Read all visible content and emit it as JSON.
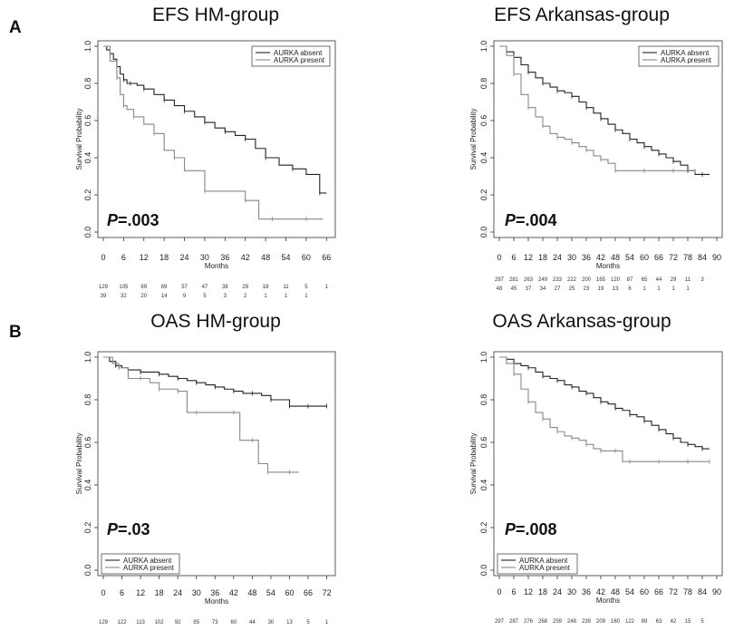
{
  "panel_labels": [
    "A",
    "B"
  ],
  "chart_data": [
    {
      "type": "line",
      "title": "EFS HM-group",
      "xlabel": "Months",
      "ylabel": "Survival Probability",
      "xticks": [
        0,
        6,
        12,
        18,
        24,
        30,
        36,
        42,
        48,
        54,
        60,
        66
      ],
      "yticks": [
        "0.0",
        "0.2",
        "0.4",
        "0.6",
        "0.8",
        "1.0"
      ],
      "xlim": [
        0,
        67
      ],
      "ylim": [
        0,
        1
      ],
      "pvalue_prefix": "P",
      "pvalue_text": "=.003",
      "legend_position": "top-right",
      "series": [
        {
          "name": "AURKA absent",
          "color": "#222222",
          "x": [
            0,
            1,
            2,
            3,
            4,
            5,
            6,
            7,
            8,
            10,
            12,
            15,
            18,
            21,
            24,
            27,
            30,
            33,
            36,
            39,
            42,
            45,
            48,
            52,
            56,
            60,
            64,
            66
          ],
          "y": [
            1.0,
            0.98,
            0.96,
            0.93,
            0.89,
            0.85,
            0.82,
            0.8,
            0.8,
            0.79,
            0.77,
            0.74,
            0.71,
            0.68,
            0.65,
            0.62,
            0.59,
            0.56,
            0.54,
            0.52,
            0.5,
            0.45,
            0.4,
            0.36,
            0.34,
            0.31,
            0.21,
            0.21
          ]
        },
        {
          "name": "AURKA present",
          "color": "#888888",
          "x": [
            0,
            2,
            4,
            5,
            6,
            7,
            9,
            12,
            15,
            18,
            21,
            24,
            30,
            36,
            42,
            46,
            50,
            56,
            60,
            65
          ],
          "y": [
            1.0,
            0.92,
            0.83,
            0.74,
            0.68,
            0.66,
            0.62,
            0.58,
            0.53,
            0.44,
            0.4,
            0.33,
            0.22,
            0.22,
            0.17,
            0.07,
            0.07,
            0.07,
            0.07,
            0.07
          ]
        }
      ],
      "risk_table": [
        [
          "129",
          "105",
          "89",
          "69",
          "57",
          "47",
          "38",
          "29",
          "18",
          "11",
          "5",
          "1"
        ],
        [
          "39",
          "32",
          "20",
          "14",
          "9",
          "5",
          "3",
          "2",
          "1",
          "1",
          "1",
          ""
        ]
      ]
    },
    {
      "type": "line",
      "title": "EFS Arkansas-group",
      "xlabel": "Months",
      "ylabel": "Survival Probability",
      "xticks": [
        0,
        6,
        12,
        18,
        24,
        30,
        36,
        42,
        48,
        54,
        60,
        66,
        72,
        78,
        84,
        90
      ],
      "yticks": [
        "0.0",
        "0.2",
        "0.4",
        "0.6",
        "0.8",
        "1.0"
      ],
      "xlim": [
        0,
        90
      ],
      "ylim": [
        0,
        1
      ],
      "pvalue_prefix": "P",
      "pvalue_text": "=.004",
      "legend_position": "top-right",
      "series": [
        {
          "name": "AURKA absent",
          "color": "#222222",
          "x": [
            0,
            3,
            6,
            9,
            12,
            15,
            18,
            21,
            24,
            27,
            30,
            33,
            36,
            39,
            42,
            45,
            48,
            51,
            54,
            57,
            60,
            63,
            66,
            69,
            72,
            75,
            78,
            81,
            84,
            87
          ],
          "y": [
            1.0,
            0.97,
            0.94,
            0.9,
            0.86,
            0.83,
            0.8,
            0.78,
            0.76,
            0.75,
            0.73,
            0.7,
            0.67,
            0.64,
            0.61,
            0.58,
            0.55,
            0.53,
            0.5,
            0.48,
            0.46,
            0.44,
            0.42,
            0.4,
            0.38,
            0.36,
            0.33,
            0.31,
            0.31,
            0.31
          ]
        },
        {
          "name": "AURKA present",
          "color": "#888888",
          "x": [
            0,
            3,
            6,
            9,
            12,
            15,
            18,
            21,
            24,
            27,
            30,
            33,
            36,
            39,
            42,
            45,
            48,
            54,
            60,
            66,
            72,
            78,
            81
          ],
          "y": [
            1.0,
            0.95,
            0.85,
            0.74,
            0.67,
            0.62,
            0.57,
            0.53,
            0.51,
            0.5,
            0.48,
            0.46,
            0.44,
            0.41,
            0.39,
            0.37,
            0.33,
            0.33,
            0.33,
            0.33,
            0.33,
            0.33,
            0.33
          ]
        }
      ],
      "risk_table": [
        [
          "297",
          "281",
          "263",
          "249",
          "233",
          "222",
          "200",
          "165",
          "120",
          "87",
          "65",
          "44",
          "29",
          "11",
          "3",
          ""
        ],
        [
          "48",
          "45",
          "37",
          "34",
          "27",
          "25",
          "23",
          "19",
          "13",
          "6",
          "1",
          "1",
          "1",
          "1",
          "",
          ""
        ]
      ]
    },
    {
      "type": "line",
      "title": "OAS HM-group",
      "xlabel": "Months",
      "ylabel": "Survival Probability",
      "xticks": [
        0,
        6,
        12,
        18,
        24,
        30,
        36,
        42,
        48,
        54,
        60,
        66,
        72
      ],
      "yticks": [
        "0.0",
        "0.2",
        "0.4",
        "0.6",
        "0.8",
        "1.0"
      ],
      "xlim": [
        0,
        73
      ],
      "ylim": [
        0,
        1
      ],
      "pvalue_prefix": "P",
      "pvalue_text": "=.03",
      "legend_position": "bottom-left",
      "series": [
        {
          "name": "AURKA absent",
          "color": "#222222",
          "x": [
            0,
            2,
            4,
            6,
            8,
            10,
            12,
            15,
            18,
            21,
            24,
            27,
            30,
            33,
            36,
            39,
            42,
            45,
            48,
            51,
            54,
            57,
            60,
            63,
            66,
            69,
            72
          ],
          "y": [
            1.0,
            0.98,
            0.96,
            0.95,
            0.94,
            0.94,
            0.93,
            0.93,
            0.92,
            0.91,
            0.9,
            0.89,
            0.88,
            0.87,
            0.86,
            0.85,
            0.84,
            0.83,
            0.83,
            0.82,
            0.8,
            0.8,
            0.77,
            0.77,
            0.77,
            0.77,
            0.77
          ]
        },
        {
          "name": "AURKA present",
          "color": "#888888",
          "x": [
            0,
            3,
            5,
            8,
            12,
            15,
            18,
            21,
            24,
            27,
            30,
            36,
            42,
            44,
            48,
            50,
            53,
            56,
            60,
            63
          ],
          "y": [
            1.0,
            0.97,
            0.95,
            0.9,
            0.9,
            0.88,
            0.85,
            0.85,
            0.84,
            0.74,
            0.74,
            0.74,
            0.74,
            0.61,
            0.61,
            0.5,
            0.46,
            0.46,
            0.46,
            0.46
          ]
        }
      ],
      "risk_table": [
        [
          "129",
          "122",
          "113",
          "102",
          "92",
          "85",
          "73",
          "60",
          "44",
          "30",
          "13",
          "5",
          "1"
        ]
      ]
    },
    {
      "type": "line",
      "title": "OAS Arkansas-group",
      "xlabel": "Months",
      "ylabel": "Survival Probability",
      "xticks": [
        0,
        6,
        12,
        18,
        24,
        30,
        36,
        42,
        48,
        54,
        60,
        66,
        72,
        78,
        84,
        90
      ],
      "yticks": [
        "0.0",
        "0.2",
        "0.4",
        "0.6",
        "0.8",
        "1.0"
      ],
      "xlim": [
        0,
        90
      ],
      "ylim": [
        0,
        1
      ],
      "pvalue_prefix": "P",
      "pvalue_text": "=.008",
      "legend_position": "bottom-left",
      "series": [
        {
          "name": "AURKA absent",
          "color": "#222222",
          "x": [
            0,
            3,
            6,
            9,
            12,
            15,
            18,
            21,
            24,
            27,
            30,
            33,
            36,
            39,
            42,
            45,
            48,
            51,
            54,
            57,
            60,
            63,
            66,
            69,
            72,
            75,
            78,
            81,
            84,
            87
          ],
          "y": [
            1.0,
            0.99,
            0.97,
            0.96,
            0.95,
            0.93,
            0.91,
            0.9,
            0.89,
            0.87,
            0.86,
            0.84,
            0.83,
            0.81,
            0.79,
            0.78,
            0.76,
            0.75,
            0.73,
            0.72,
            0.7,
            0.68,
            0.66,
            0.64,
            0.62,
            0.6,
            0.59,
            0.58,
            0.57,
            0.57
          ]
        },
        {
          "name": "AURKA present",
          "color": "#888888",
          "x": [
            0,
            3,
            6,
            9,
            12,
            15,
            18,
            21,
            24,
            27,
            30,
            33,
            36,
            39,
            42,
            45,
            48,
            51,
            54,
            60,
            66,
            72,
            78,
            84,
            87
          ],
          "y": [
            1.0,
            0.97,
            0.92,
            0.85,
            0.79,
            0.74,
            0.71,
            0.67,
            0.65,
            0.63,
            0.62,
            0.61,
            0.59,
            0.57,
            0.56,
            0.56,
            0.56,
            0.51,
            0.51,
            0.51,
            0.51,
            0.51,
            0.51,
            0.51,
            0.51
          ]
        }
      ],
      "risk_table": [
        [
          "297",
          "287",
          "276",
          "268",
          "259",
          "248",
          "239",
          "209",
          "160",
          "122",
          "89",
          "63",
          "42",
          "15",
          "5",
          ""
        ]
      ]
    }
  ]
}
